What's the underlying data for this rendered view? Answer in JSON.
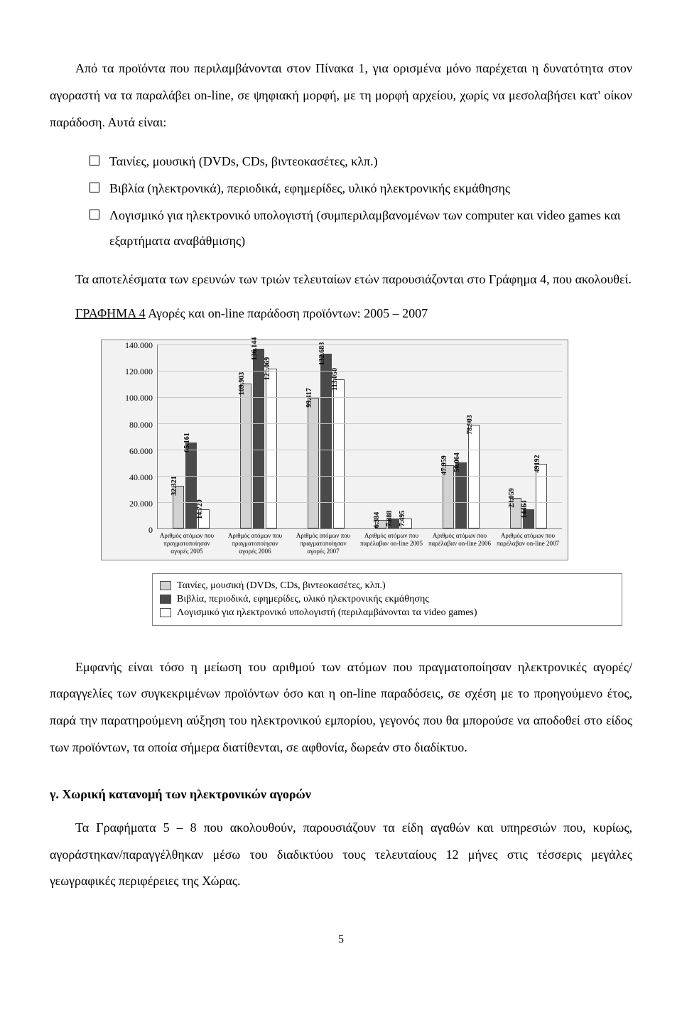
{
  "para1": "Από τα προϊόντα που περιλαμβάνονται στον Πίνακα 1, για ορισμένα μόνο παρέχεται η δυνατότητα στον αγοραστή να τα παραλάβει on-line, σε ψηφιακή μορφή, με τη μορφή αρχείου, χωρίς να μεσολαβήσει κατ' οίκον παράδοση. Αυτά είναι:",
  "bullets": [
    "Ταινίες, μουσική (DVDs, CDs, βιντεοκασέτες, κλπ.)",
    "Βιβλία (ηλεκτρονικά), περιοδικά, εφημερίδες, υλικό ηλεκτρονικής εκμάθησης",
    "Λογισμικό για ηλεκτρονικό υπολογιστή (συμπεριλαμβανομένων των computer  και  video games και εξαρτήματα αναβάθμισης)"
  ],
  "para2": "Τα αποτελέσματα των ερευνών των τριών τελευταίων ετών παρουσιάζονται στο Γράφημα 4,   που ακολουθεί.",
  "chart_title_u": "ΓΡΑΦΗΜΑ 4",
  "chart_title_rest": " Αγορές και on-line παράδοση προϊόντων: 2005 – 2007",
  "chart": {
    "ymax": 140000,
    "y_ticks": [
      "140.000",
      "120.000",
      "100.000",
      "80.000",
      "60.000",
      "40.000",
      "20.000",
      "0"
    ],
    "colors": {
      "a": "#d2d2d2",
      "b": "#4a4a4a",
      "c": "#ffffff",
      "border": "#4a4a4a",
      "grid": "#c8c8c8",
      "bg": "#f2f2f2"
    },
    "series_names": [
      "Ταινίες, μουσική (DVDs, CDs, βιντεοκασέτες, κλπ.)",
      "Βιβλία, περιοδικά, εφημερίδες, υλικό ηλεκτρονικής εκμάθησης",
      "Λογισμικό για ηλεκτρονικό υπολογιστή (περιλαμβάνονται τα video games)"
    ],
    "groups": [
      {
        "label": "Αριθμός ατόμων που πραγματοποίησαν αγορές 2005",
        "bars": [
          {
            "v": 32321,
            "t": "32.321"
          },
          {
            "v": 65161,
            "t": "65.161"
          },
          {
            "v": 14720,
            "t": "14.720"
          }
        ]
      },
      {
        "label": "Αριθμός ατόμων που πραγματοποίησαν αγορές 2006",
        "bars": [
          {
            "v": 109903,
            "t": "109.903"
          },
          {
            "v": 136144,
            "t": "136.144"
          },
          {
            "v": 121069,
            "t": "121.069"
          }
        ]
      },
      {
        "label": "Αριθμός ατόμων που πραγματοποίησαν αγορές 2007",
        "bars": [
          {
            "v": 99417,
            "t": "99.417"
          },
          {
            "v": 132688,
            "t": "132.688"
          },
          {
            "v": 113050,
            "t": "113.050"
          }
        ]
      },
      {
        "label": "Αριθμός ατόμων που παρέλαβαν on-line 2005",
        "bars": [
          {
            "v": 6384,
            "t": "6.384"
          },
          {
            "v": 7888,
            "t": "7.888"
          },
          {
            "v": 7495,
            "t": "7.495"
          }
        ]
      },
      {
        "label": "Αριθμός ατόμων που παρέλαβαν on-line 2006",
        "bars": [
          {
            "v": 47959,
            "t": "47.959"
          },
          {
            "v": 50064,
            "t": "50.064"
          },
          {
            "v": 78903,
            "t": "78.903"
          }
        ]
      },
      {
        "label": "Αριθμός ατόμων που παρέλαβαν on-line 2007",
        "bars": [
          {
            "v": 23059,
            "t": "23.059"
          },
          {
            "v": 14464,
            "t": "14464"
          },
          {
            "v": 49192,
            "t": "49192"
          }
        ]
      }
    ]
  },
  "para3": "Εμφανής είναι τόσο η μείωση του αριθμού των ατόμων που πραγματοποίησαν ηλεκτρονικές αγορές/ παραγγελίες  των συγκεκριμένων προϊόντων όσο και η on-line παραδόσεις, σε σχέση με το προηγούμενο έτος, παρά την παρατηρούμενη αύξηση του ηλεκτρονικού εμπορίου, γεγονός που θα μπορούσε να αποδοθεί στο είδος των προϊόντων,  τα οποία σήμερα διατίθενται, σε αφθονία, δωρεάν στο διαδίκτυο.",
  "section_gamma": "γ. Χωρική κατανομή των ηλεκτρονικών αγορών",
  "para4": "Τα Γραφήματα 5 – 8 που ακολουθούν, παρουσιάζουν τα  είδη αγαθών και υπηρεσιών που, κυρίως, αγοράστηκαν/παραγγέλθηκαν μέσω του διαδικτύου τους τελευταίους 12 μήνες στις τέσσερις μεγάλες γεωγραφικές περιφέρειες της Χώρας.",
  "page_number": "5"
}
